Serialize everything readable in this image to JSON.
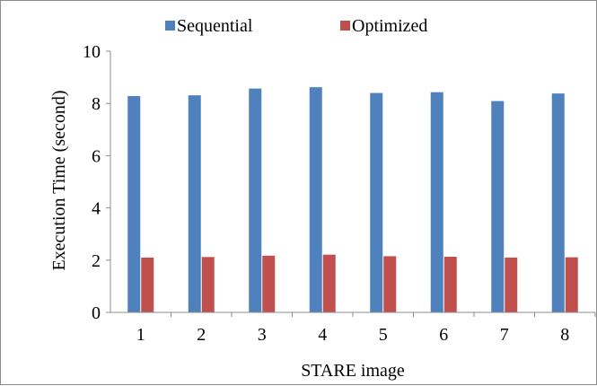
{
  "chart_data": {
    "type": "bar",
    "categories": [
      "1",
      "2",
      "3",
      "4",
      "5",
      "6",
      "7",
      "8"
    ],
    "series": [
      {
        "name": "Sequential",
        "color": "#4f81bd",
        "values": [
          8.28,
          8.31,
          8.57,
          8.62,
          8.4,
          8.43,
          8.09,
          8.38
        ]
      },
      {
        "name": "Optimized",
        "color": "#c0504d",
        "values": [
          2.1,
          2.12,
          2.17,
          2.21,
          2.15,
          2.13,
          2.1,
          2.11
        ]
      }
    ],
    "title": "",
    "xlabel": "STARE image",
    "ylabel": "Execution Time (second)",
    "ylim": [
      0,
      10
    ],
    "yticks": [
      "0",
      "2",
      "4",
      "6",
      "8",
      "10"
    ],
    "grid": false,
    "legend": "top-center"
  }
}
